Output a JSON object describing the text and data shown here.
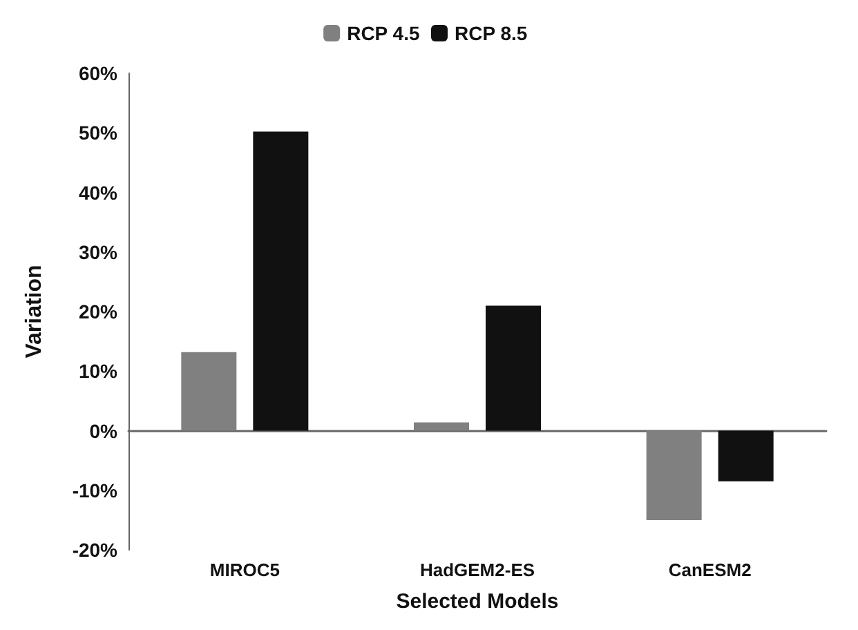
{
  "chart_data": {
    "type": "bar",
    "xlabel": "Selected Models",
    "ylabel": "Variation",
    "categories": [
      "MIROC5",
      "HadGEM2-ES",
      "CanESM2"
    ],
    "series": [
      {
        "name": "RCP 4.5",
        "color": "#808080",
        "values": [
          13.2,
          1.4,
          -15
        ]
      },
      {
        "name": "RCP 8.5",
        "color": "#111111",
        "values": [
          50.2,
          21,
          -8.5
        ]
      }
    ],
    "ylim": [
      -20,
      60
    ],
    "yticks": [
      {
        "value": -20,
        "label": "-20%"
      },
      {
        "value": -10,
        "label": "-10%"
      },
      {
        "value": 0,
        "label": "0%"
      },
      {
        "value": 10,
        "label": "10%"
      },
      {
        "value": 20,
        "label": "20%"
      },
      {
        "value": 30,
        "label": "30%"
      },
      {
        "value": 40,
        "label": "40%"
      },
      {
        "value": 50,
        "label": "50%"
      },
      {
        "value": 60,
        "label": "60%"
      }
    ],
    "legend": "top"
  }
}
